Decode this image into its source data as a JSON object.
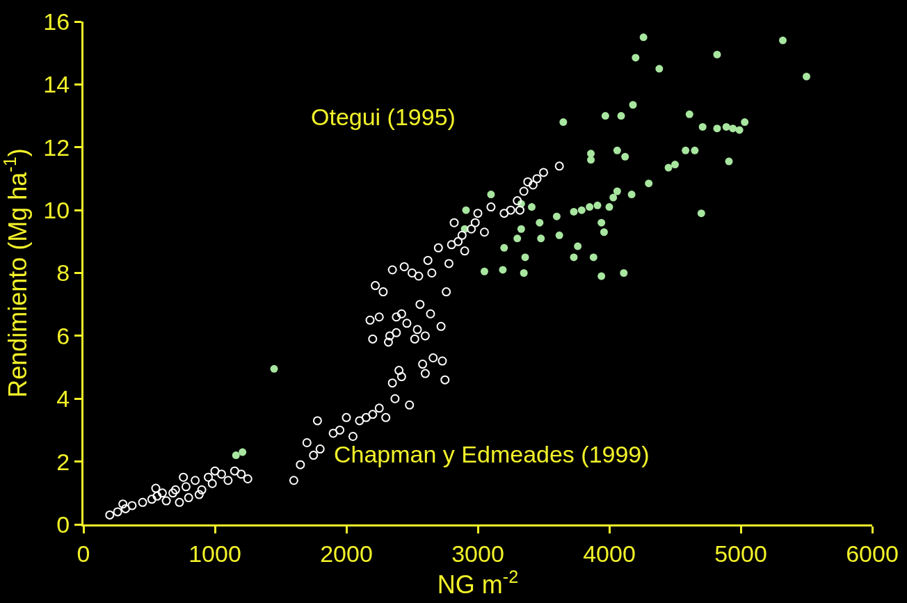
{
  "chart_data": {
    "type": "scatter",
    "xlabel": "NG m$^{-2}$",
    "ylabel": "Rendimiento (Mg ha$^{-1}$)",
    "xlim": [
      0,
      6000
    ],
    "xticks": [
      0,
      1000,
      2000,
      3000,
      4000,
      5000,
      6000
    ],
    "ylim": [
      0,
      16
    ],
    "yticks": [
      0,
      2,
      4,
      6,
      8,
      10,
      12,
      14,
      16
    ],
    "grid": false,
    "legend": false,
    "series": [
      {
        "name": "Otegui (1995)",
        "color": "#a8e6a0",
        "marker": "circle",
        "x": [
          1160,
          1210,
          1450,
          2910,
          3100,
          2900,
          3050,
          3190,
          3200,
          3330,
          3330,
          3410,
          3350,
          3360,
          3480,
          3470,
          3300,
          3620,
          3650,
          3600,
          3730,
          3790,
          3850,
          3910,
          3760,
          3730,
          3860,
          3860,
          3880,
          3940,
          3970,
          3960,
          4000,
          4030,
          4060,
          3940,
          4060,
          4120,
          4090,
          4180,
          4170,
          4110,
          4200,
          4260,
          4300,
          4380,
          4450,
          4500,
          4580,
          4650,
          4610,
          4700,
          4710,
          4820,
          4820,
          4890,
          4940,
          4990,
          5030,
          4910,
          5320,
          5500
        ],
        "values": [
          2.2,
          2.3,
          4.95,
          10.0,
          10.5,
          9.4,
          8.05,
          8.1,
          8.8,
          9.4,
          10.2,
          10.1,
          8.0,
          8.5,
          9.1,
          9.6,
          9.1,
          9.2,
          12.8,
          9.8,
          9.95,
          10.0,
          10.1,
          10.15,
          8.85,
          8.5,
          11.8,
          11.6,
          8.5,
          7.9,
          13.0,
          9.3,
          10.1,
          10.4,
          10.6,
          9.6,
          11.9,
          11.7,
          13.0,
          13.35,
          10.5,
          8.0,
          14.85,
          15.5,
          10.85,
          14.5,
          11.35,
          11.45,
          11.9,
          11.9,
          13.05,
          9.9,
          12.65,
          14.95,
          12.6,
          12.65,
          12.6,
          12.55,
          12.8,
          11.55,
          15.4,
          14.25
        ]
      },
      {
        "name": "Chapman y Edmeades (1999)",
        "color": "#ffffff",
        "marker": "circle-open",
        "x": [
          200,
          260,
          320,
          370,
          300,
          450,
          520,
          560,
          600,
          630,
          700,
          730,
          780,
          800,
          850,
          900,
          950,
          980,
          1050,
          1100,
          1200,
          1250,
          1150,
          1000,
          680,
          550,
          760,
          880,
          1600,
          1650,
          1700,
          1750,
          1780,
          1800,
          1900,
          1950,
          2000,
          2050,
          2100,
          2150,
          2200,
          2250,
          2300,
          2180,
          2200,
          2220,
          2250,
          2280,
          2320,
          2330,
          2350,
          2370,
          2380,
          2400,
          2420,
          2440,
          2460,
          2480,
          2500,
          2520,
          2540,
          2560,
          2580,
          2600,
          2620,
          2640,
          2660,
          2700,
          2720,
          2750,
          2730,
          2760,
          2780,
          2800,
          2820,
          2850,
          2880,
          2900,
          2950,
          3000,
          3050,
          3100,
          2980,
          3250,
          3300,
          3350,
          3380,
          3420,
          3450,
          3500,
          3620,
          3320,
          3200,
          2600,
          2650,
          2550,
          2350,
          2380,
          2420
        ],
        "values": [
          0.3,
          0.4,
          0.5,
          0.6,
          0.65,
          0.7,
          0.8,
          0.9,
          1.0,
          0.75,
          1.1,
          0.7,
          1.2,
          0.85,
          1.4,
          1.1,
          1.5,
          1.3,
          1.6,
          1.4,
          1.6,
          1.45,
          1.7,
          1.7,
          1.0,
          1.15,
          1.5,
          0.95,
          1.4,
          1.9,
          2.6,
          2.2,
          3.3,
          2.4,
          2.9,
          3.0,
          3.4,
          2.8,
          3.3,
          3.4,
          3.5,
          3.7,
          3.4,
          6.5,
          5.9,
          7.6,
          6.6,
          7.4,
          5.8,
          6.0,
          4.5,
          4.0,
          6.1,
          4.9,
          4.7,
          8.2,
          6.4,
          3.8,
          8.0,
          5.9,
          6.2,
          7.0,
          5.1,
          4.8,
          8.4,
          6.7,
          5.3,
          8.8,
          6.3,
          4.6,
          5.2,
          7.4,
          8.3,
          8.9,
          9.6,
          9.0,
          9.2,
          8.7,
          9.4,
          9.9,
          9.3,
          10.1,
          9.6,
          10.0,
          10.3,
          10.6,
          10.9,
          10.8,
          11.0,
          11.2,
          11.4,
          10.0,
          9.9,
          6.0,
          8.0,
          7.9,
          8.1,
          6.6,
          6.7
        ]
      }
    ]
  }
}
